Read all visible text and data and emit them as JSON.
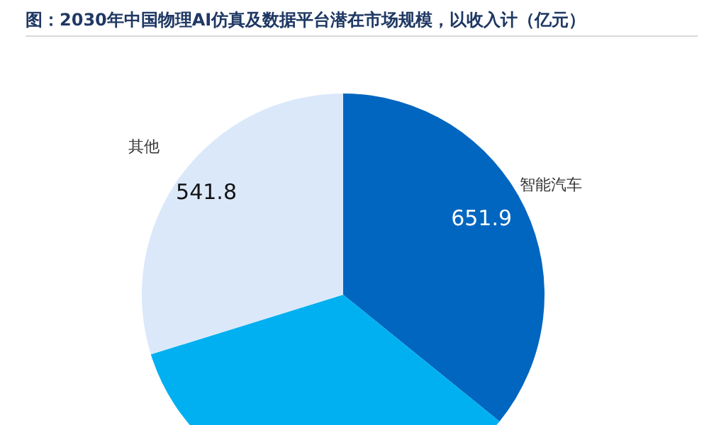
{
  "chart_data": {
    "type": "pie",
    "title": "图：2030年中国物理AI仿真及数据平台潜在市场规模，以收入计（亿元）",
    "categories": [
      "智能汽车",
      null,
      "其他"
    ],
    "values": [
      651.9,
      625,
      541.8
    ],
    "colors": [
      "#0066c0",
      "#00b0f0",
      "#dae8fa"
    ],
    "value_labels": [
      "651.9",
      null,
      "541.8"
    ],
    "legend": false
  }
}
